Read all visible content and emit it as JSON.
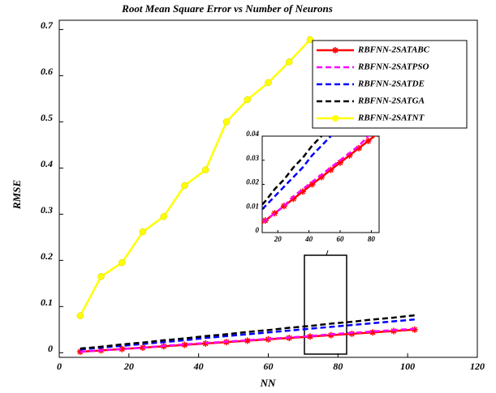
{
  "chart_data": {
    "type": "line",
    "title": "Root Mean Square Error vs Number of Neurons",
    "x_label": "NN",
    "y_label": "RMSE",
    "x": [
      6,
      12,
      18,
      24,
      30,
      36,
      42,
      48,
      54,
      60,
      66,
      72,
      78,
      84,
      90,
      96,
      102
    ],
    "series": [
      {
        "name": "RBFNN-2SATABC",
        "color": "#ff0000",
        "dash": false,
        "marker": "star",
        "values": [
          0.002,
          0.005,
          0.008,
          0.011,
          0.014,
          0.017,
          0.02,
          0.023,
          0.026,
          0.029,
          0.032,
          0.035,
          0.038,
          0.041,
          0.044,
          0.047,
          0.05
        ]
      },
      {
        "name": "RBFNN-2SATPSO",
        "color": "#ff00ff",
        "dash": true,
        "marker": "none",
        "values": [
          0.002,
          0.005,
          0.008,
          0.011,
          0.015,
          0.018,
          0.021,
          0.024,
          0.027,
          0.03,
          0.033,
          0.036,
          0.04,
          0.043,
          0.046,
          0.049,
          0.052
        ]
      },
      {
        "name": "RBFNN-2SATDE",
        "color": "#0000ff",
        "dash": true,
        "marker": "none",
        "values": [
          0.007,
          0.011,
          0.015,
          0.019,
          0.023,
          0.027,
          0.032,
          0.036,
          0.04,
          0.044,
          0.048,
          0.052,
          0.056,
          0.06,
          0.064,
          0.068,
          0.072
        ]
      },
      {
        "name": "RBFNN-2SATGA",
        "color": "#000000",
        "dash": true,
        "marker": "none",
        "values": [
          0.009,
          0.013,
          0.018,
          0.022,
          0.027,
          0.031,
          0.036,
          0.04,
          0.045,
          0.049,
          0.054,
          0.058,
          0.063,
          0.067,
          0.072,
          0.076,
          0.081
        ]
      },
      {
        "name": "RBFNN-2SATNT",
        "color": "#ffff00",
        "dash": false,
        "marker": "circle",
        "values": [
          0.08,
          0.165,
          0.195,
          0.262,
          0.295,
          0.362,
          0.396,
          0.5,
          0.548,
          0.585,
          0.63,
          0.678,
          null,
          null,
          null,
          null,
          null
        ]
      }
    ],
    "xlim": [
      0,
      120
    ],
    "xticks": [
      0,
      20,
      40,
      60,
      80,
      100,
      120
    ],
    "ylim": [
      -0.01,
      0.72
    ],
    "yticks": [
      0,
      0.1,
      0.2,
      0.3,
      0.4,
      0.5,
      0.6,
      0.7
    ],
    "legend": "upper right",
    "inset": {
      "xlim": [
        10,
        85
      ],
      "xticks": [
        20,
        40,
        60,
        80
      ],
      "ylim": [
        0,
        0.04
      ],
      "yticks": [
        0,
        0.01,
        0.02,
        0.03,
        0.04
      ]
    }
  }
}
